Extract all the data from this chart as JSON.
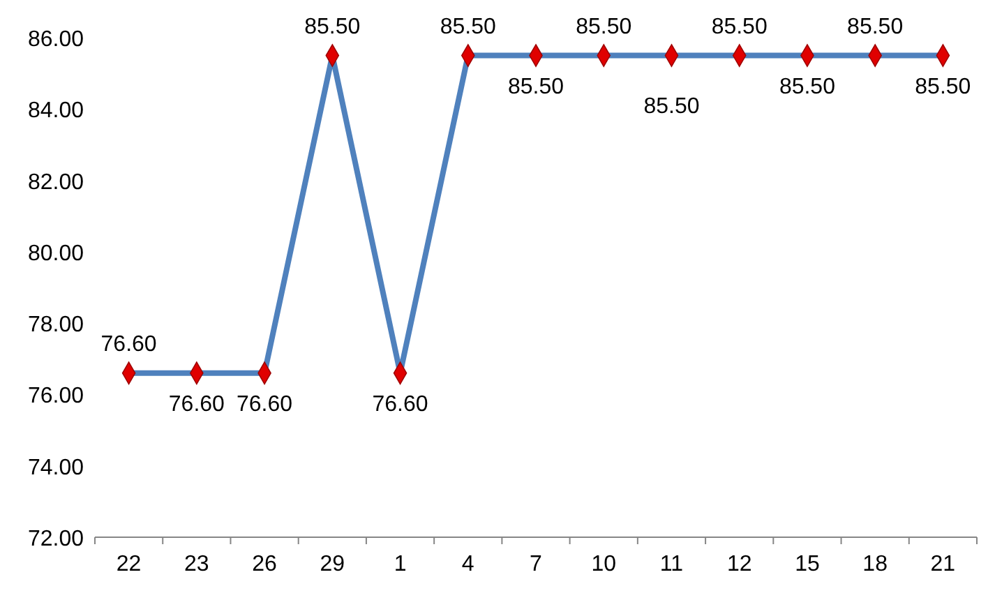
{
  "chart_data": {
    "type": "line",
    "categories": [
      "22",
      "23",
      "26",
      "29",
      "1",
      "4",
      "7",
      "10",
      "11",
      "12",
      "15",
      "18",
      "21"
    ],
    "series": [
      {
        "color": "#4f81bd",
        "values": [
          76.6,
          76.6,
          76.6,
          85.5,
          76.6,
          85.5,
          85.5,
          85.5,
          85.5,
          85.5,
          85.5,
          85.5,
          85.5
        ],
        "value_labels": [
          "76.60",
          "76.60",
          "76.60",
          "85.50",
          "76.60",
          "85.50",
          "85.50",
          "85.50",
          "85.50",
          "85.50",
          "85.50",
          "85.50",
          "85.50"
        ]
      }
    ],
    "ylim": [
      72,
      86
    ],
    "yticks": [
      {
        "value": 72,
        "label": "72.00"
      },
      {
        "value": 74,
        "label": "74.00"
      },
      {
        "value": 76,
        "label": "76.00"
      },
      {
        "value": 78,
        "label": "78.00"
      },
      {
        "value": 80,
        "label": "80.00"
      },
      {
        "value": 82,
        "label": "82.00"
      },
      {
        "value": 84,
        "label": "84.00"
      },
      {
        "value": 86,
        "label": "86.00"
      }
    ],
    "marker": "diamond",
    "line_style": "solid",
    "grid": false
  }
}
